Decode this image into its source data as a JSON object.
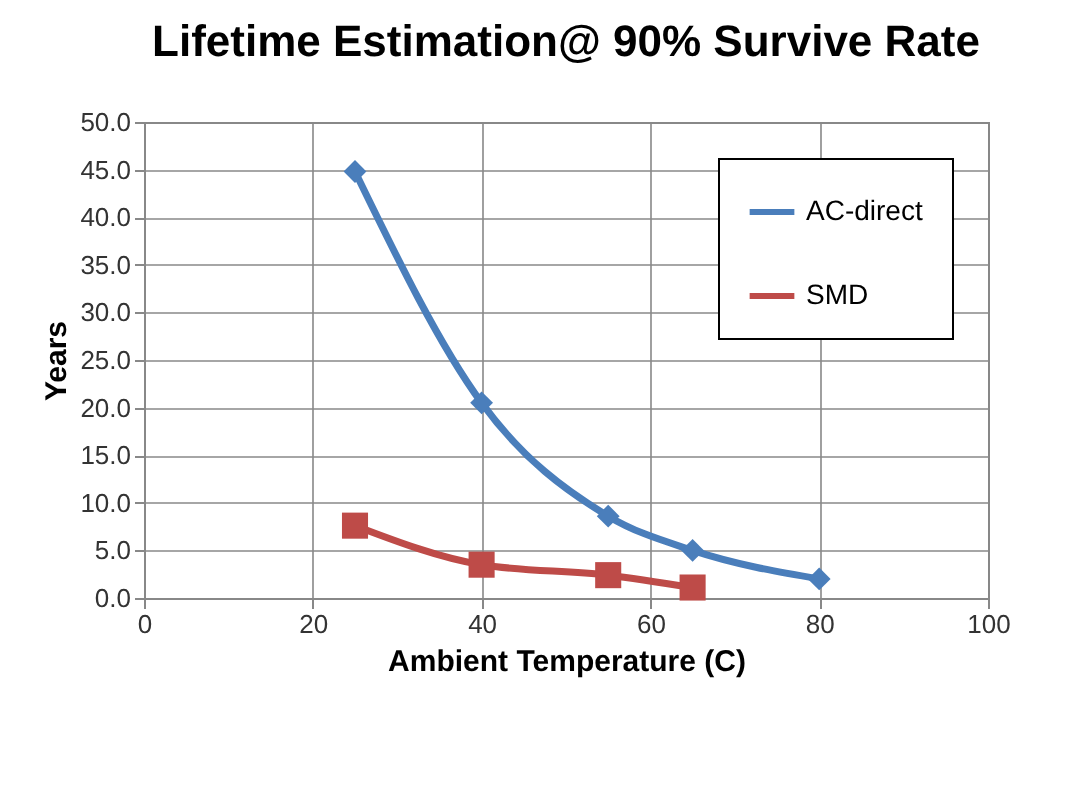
{
  "chart_data": {
    "type": "line",
    "title": "Lifetime Estimation@ 90% Survive Rate",
    "xlabel": "Ambient Temperature (C)",
    "ylabel": "Years",
    "series": [
      {
        "name": "AC-direct",
        "color": "#4a7ebb",
        "marker": "diamond",
        "x": [
          25,
          40,
          55,
          65,
          80
        ],
        "values": [
          44.8,
          20.5,
          8.6,
          5.0,
          2.0
        ]
      },
      {
        "name": "SMD",
        "color": "#be4b48",
        "marker": "square",
        "x": [
          25,
          40,
          55,
          65
        ],
        "values": [
          7.6,
          3.5,
          2.4,
          1.1
        ]
      }
    ],
    "xlim": [
      0,
      100
    ],
    "xticks": [
      0,
      20,
      40,
      60,
      80,
      100
    ],
    "ylim": [
      0,
      50
    ],
    "yticks": [
      {
        "value": 0,
        "label": "0.0"
      },
      {
        "value": 5,
        "label": "5.0"
      },
      {
        "value": 10,
        "label": "10.0"
      },
      {
        "value": 15,
        "label": "15.0"
      },
      {
        "value": 20,
        "label": "20.0"
      },
      {
        "value": 25,
        "label": "25.0"
      },
      {
        "value": 30,
        "label": "30.0"
      },
      {
        "value": 35,
        "label": "35.0"
      },
      {
        "value": 40,
        "label": "40.0"
      },
      {
        "value": 45,
        "label": "45.0"
      },
      {
        "value": 50,
        "label": "50.0"
      }
    ],
    "grid": true,
    "legend": "top right"
  }
}
